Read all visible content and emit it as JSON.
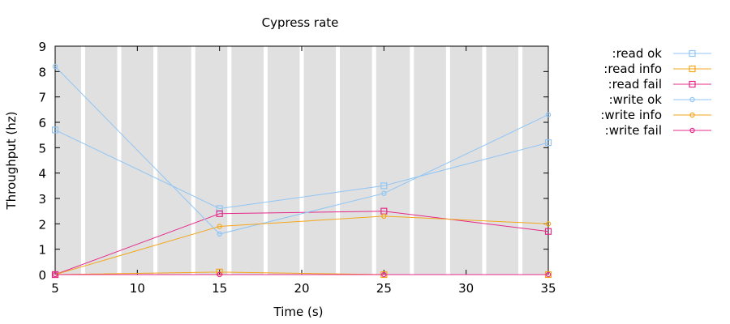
{
  "chart_data": {
    "type": "line",
    "title": "Cypress rate",
    "xlabel": "Time (s)",
    "ylabel": "Throughput (hz)",
    "xlim": [
      5,
      35
    ],
    "ylim": [
      0,
      9
    ],
    "xticks": [
      5,
      10,
      15,
      20,
      25,
      30,
      35
    ],
    "yticks": [
      0,
      1,
      2,
      3,
      4,
      5,
      6,
      7,
      8,
      9
    ],
    "background": "#e0e0e0",
    "stripe_color": "#ffffff",
    "stripe_times": [
      6.7,
      8.9,
      11.1,
      13.4,
      15.6,
      17.8,
      20.0,
      22.2,
      24.4,
      26.7,
      28.9,
      31.1,
      33.3
    ],
    "legend_position": "right",
    "series": [
      {
        "name": ":read ok",
        "color": "#8fc5f5",
        "marker": "square",
        "x": [
          5,
          15,
          25,
          35
        ],
        "y": [
          5.7,
          2.6,
          3.5,
          5.2
        ]
      },
      {
        "name": ":read info",
        "color": "#f3a71c",
        "marker": "square",
        "x": [
          5,
          15,
          25,
          35
        ],
        "y": [
          0,
          0.1,
          0,
          0
        ]
      },
      {
        "name": ":read fail",
        "color": "#e5288a",
        "marker": "square",
        "x": [
          5,
          15,
          25,
          35
        ],
        "y": [
          0,
          2.4,
          2.5,
          1.7
        ]
      },
      {
        "name": ":write ok",
        "color": "#8fc5f5",
        "marker": "circle",
        "x": [
          5,
          15,
          25,
          35
        ],
        "y": [
          8.2,
          1.6,
          3.2,
          6.3
        ]
      },
      {
        "name": ":write info",
        "color": "#f3a71c",
        "marker": "circle",
        "x": [
          5,
          15,
          25,
          35
        ],
        "y": [
          0,
          1.9,
          2.3,
          2.0
        ]
      },
      {
        "name": ":write fail",
        "color": "#e5288a",
        "marker": "circle",
        "x": [
          5,
          15,
          25,
          35
        ],
        "y": [
          0,
          0,
          0,
          0
        ]
      }
    ]
  }
}
